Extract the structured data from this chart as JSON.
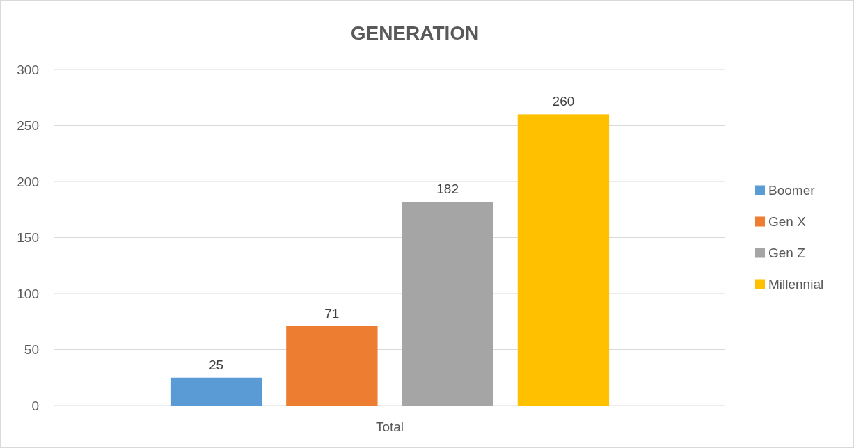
{
  "chart_data": {
    "type": "bar",
    "title": "GENERATION",
    "categories": [
      "Total"
    ],
    "series": [
      {
        "name": "Boomer",
        "color": "#5b9bd5",
        "values": [
          25
        ]
      },
      {
        "name": "Gen X",
        "color": "#ed7d31",
        "values": [
          71
        ]
      },
      {
        "name": "Gen Z",
        "color": "#a5a5a5",
        "values": [
          182
        ]
      },
      {
        "name": "Millennial",
        "color": "#ffc000",
        "values": [
          260
        ]
      }
    ],
    "ylim": [
      0,
      300
    ],
    "yticks": [
      0,
      50,
      100,
      150,
      200,
      250,
      300
    ],
    "grid": "y",
    "legend": "right",
    "data_labels": true
  }
}
